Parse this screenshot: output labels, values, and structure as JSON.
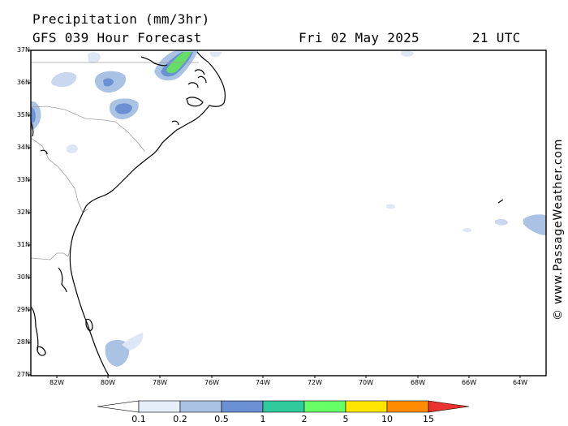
{
  "header": {
    "title": "Precipitation (mm/3hr)",
    "forecast": "GFS 039 Hour Forecast",
    "date": "Fri 02 May 2025",
    "time": "21 UTC"
  },
  "map": {
    "lat_labels": [
      "37N",
      "36N",
      "35N",
      "34N",
      "33N",
      "32N",
      "31N",
      "30N",
      "29N",
      "28N",
      "27N"
    ],
    "lon_labels": [
      "82W",
      "80W",
      "78W",
      "76W",
      "74W",
      "72W",
      "70W",
      "68W",
      "66W",
      "64W"
    ],
    "coastline_color": "#000000",
    "border_color": "#a0a0a0"
  },
  "watermark": "© www.PassageWeather.com",
  "colorbar": {
    "labels": [
      "0.1",
      "0.2",
      "0.5",
      "1",
      "2",
      "5",
      "10",
      "15"
    ],
    "colors": [
      "#ffffff",
      "#e6eef9",
      "#aac2e4",
      "#6b91d4",
      "#2fc99b",
      "#66ff66",
      "#ffe600",
      "#ff8c00",
      "#e8332e"
    ]
  }
}
